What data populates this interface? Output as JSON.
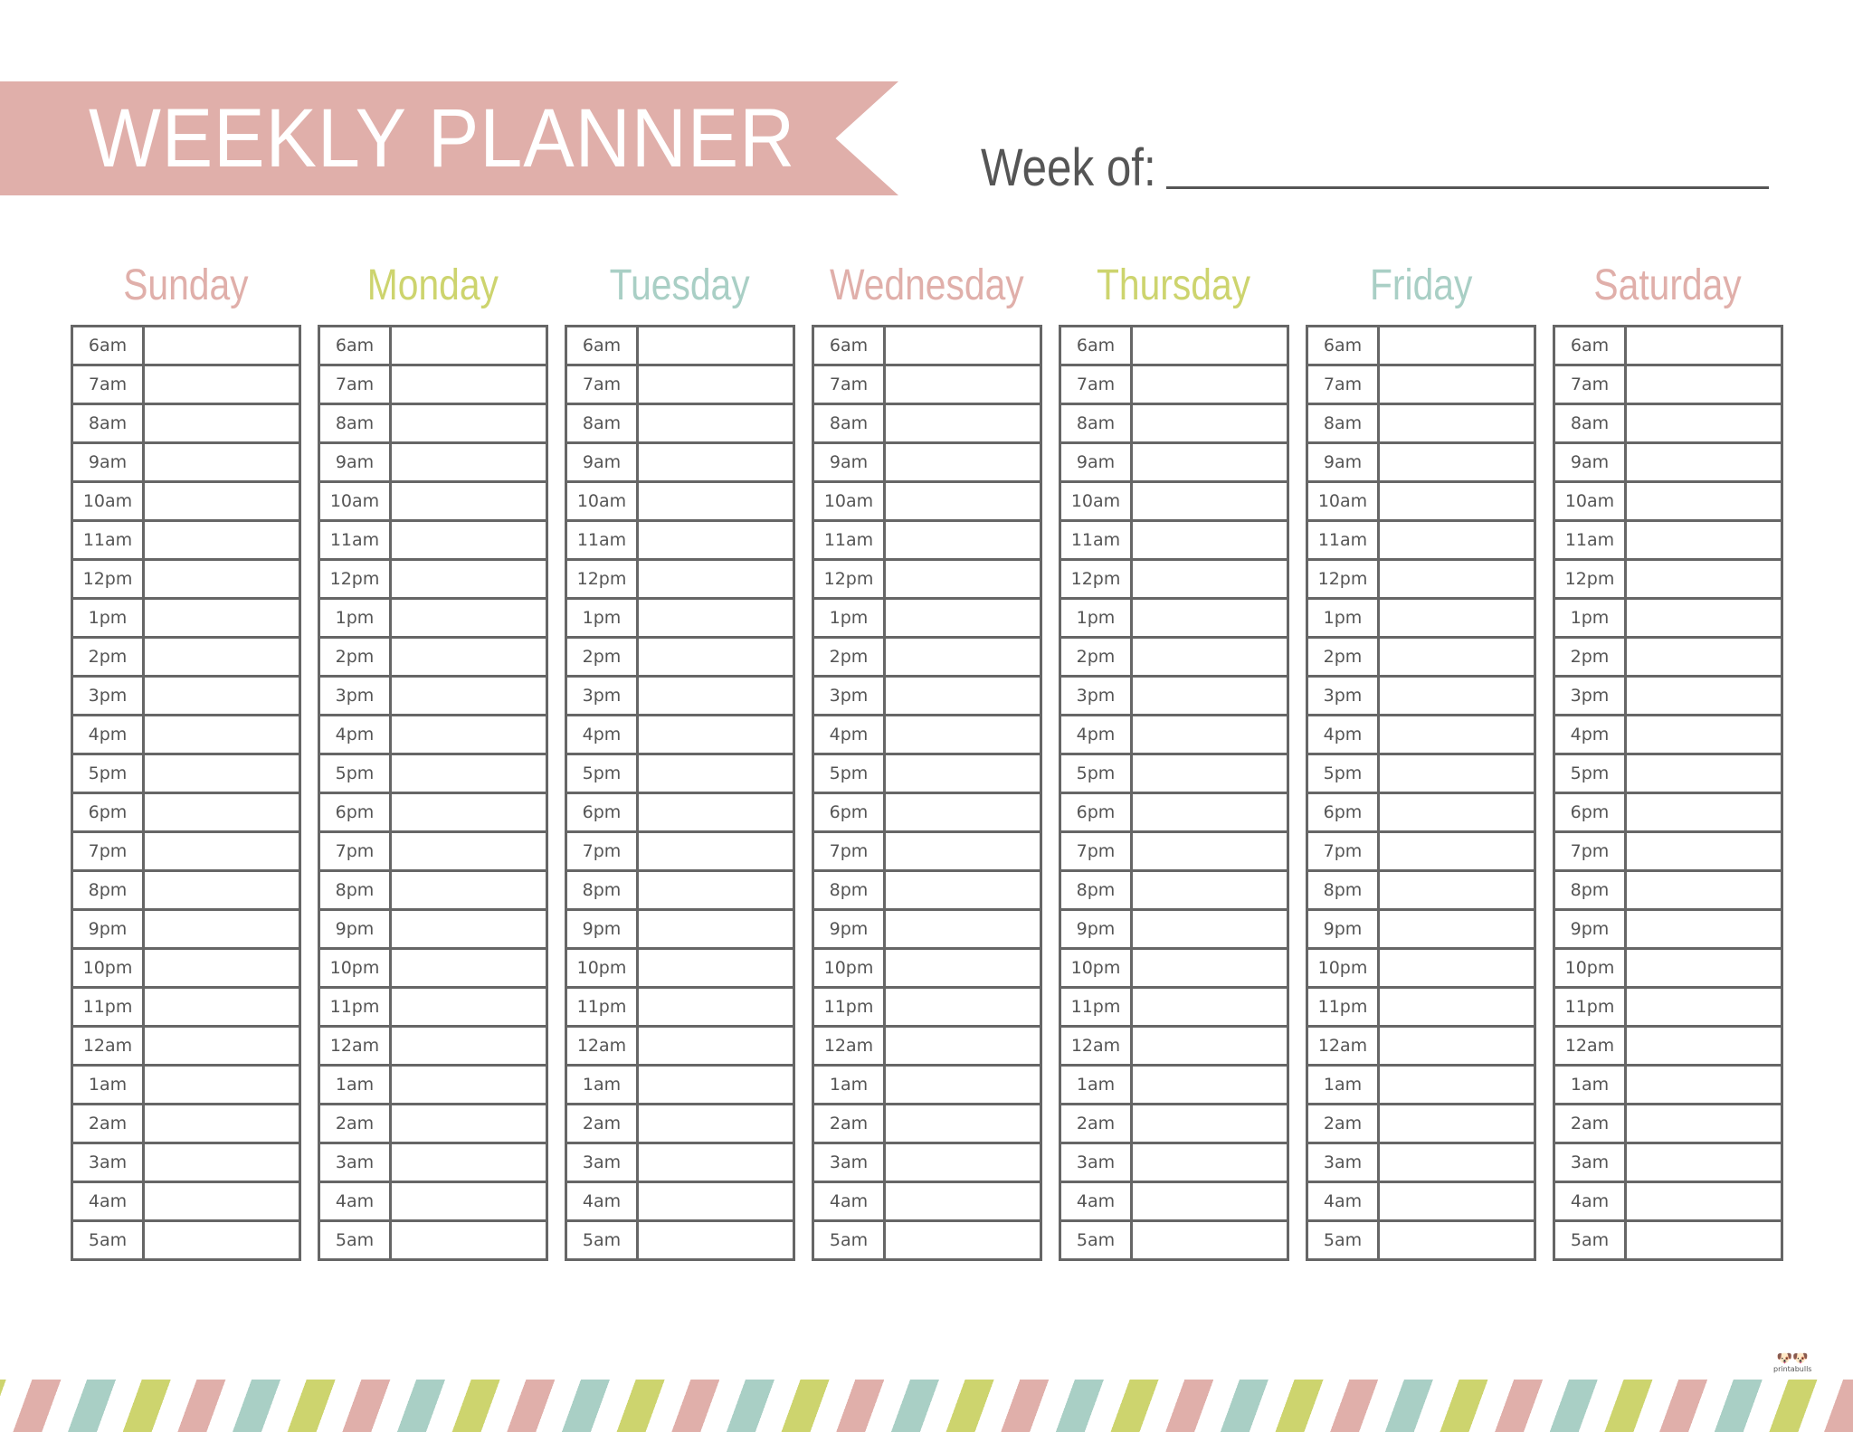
{
  "header": {
    "title": "WEEKLY PLANNER",
    "week_of_label": "Week of:",
    "week_of_value": ""
  },
  "days": [
    {
      "name": "Sunday",
      "color": "#e0afaa"
    },
    {
      "name": "Monday",
      "color": "#cdd46e"
    },
    {
      "name": "Tuesday",
      "color": "#a9cfc5"
    },
    {
      "name": "Wednesday",
      "color": "#e0afaa"
    },
    {
      "name": "Thursday",
      "color": "#cdd46e"
    },
    {
      "name": "Friday",
      "color": "#a9cfc5"
    },
    {
      "name": "Saturday",
      "color": "#e0afaa"
    }
  ],
  "times": [
    "6am",
    "7am",
    "8am",
    "9am",
    "10am",
    "11am",
    "12pm",
    "1pm",
    "2pm",
    "3pm",
    "4pm",
    "5pm",
    "6pm",
    "7pm",
    "8pm",
    "9pm",
    "10pm",
    "11pm",
    "12am",
    "1am",
    "2am",
    "3am",
    "4am",
    "5am"
  ],
  "footer": {
    "logo_text": "printabulls",
    "stripe_colors": [
      "#e0afaa",
      "#cdd46e",
      "#a9cfc5"
    ]
  },
  "colors": {
    "banner": "#e0afaa",
    "grid": "#666666",
    "text": "#555555"
  }
}
